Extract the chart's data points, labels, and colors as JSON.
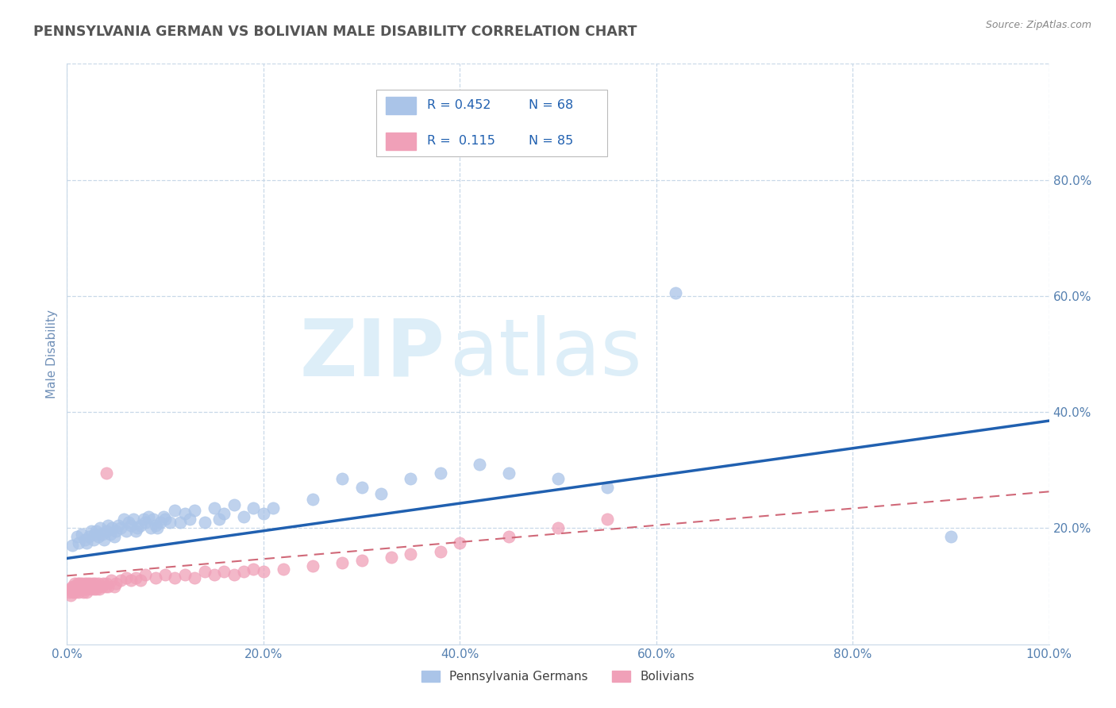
{
  "title": "PENNSYLVANIA GERMAN VS BOLIVIAN MALE DISABILITY CORRELATION CHART",
  "source_text": "Source: ZipAtlas.com",
  "ylabel": "Male Disability",
  "xlim": [
    0.0,
    1.0
  ],
  "ylim": [
    0.0,
    1.0
  ],
  "xtick_labels": [
    "0.0%",
    "20.0%",
    "40.0%",
    "60.0%",
    "80.0%",
    "100.0%"
  ],
  "xtick_vals": [
    0.0,
    0.2,
    0.4,
    0.6,
    0.8,
    1.0
  ],
  "ytick_labels": [
    "20.0%",
    "40.0%",
    "60.0%",
    "80.0%"
  ],
  "ytick_vals": [
    0.2,
    0.4,
    0.6,
    0.8
  ],
  "legend_r1": "R = 0.452",
  "legend_n1": "N = 68",
  "legend_r2": "R =  0.115",
  "legend_n2": "N = 85",
  "series1_color": "#aac4e8",
  "series2_color": "#f0a0b8",
  "trendline1_color": "#2060b0",
  "trendline2_color": "#d06878",
  "background_color": "#ffffff",
  "grid_color": "#c8d8e8",
  "watermark_color": "#ddeef8",
  "title_color": "#555555",
  "source_color": "#888888",
  "axis_label_color": "#7090b8",
  "tick_color": "#5580b0",
  "legend_text_color": "#2060b0",
  "bottom_legend_color": "#404040",
  "trendline1_start_y": 0.148,
  "trendline1_end_y": 0.385,
  "trendline2_start_y": 0.118,
  "trendline2_end_y": 0.263,
  "series1_x": [
    0.005,
    0.01,
    0.012,
    0.015,
    0.018,
    0.02,
    0.022,
    0.025,
    0.027,
    0.028,
    0.03,
    0.032,
    0.034,
    0.036,
    0.038,
    0.04,
    0.042,
    0.044,
    0.046,
    0.048,
    0.05,
    0.052,
    0.055,
    0.058,
    0.06,
    0.063,
    0.065,
    0.068,
    0.07,
    0.072,
    0.075,
    0.078,
    0.08,
    0.083,
    0.085,
    0.088,
    0.09,
    0.092,
    0.095,
    0.098,
    0.1,
    0.105,
    0.11,
    0.115,
    0.12,
    0.125,
    0.13,
    0.14,
    0.15,
    0.155,
    0.16,
    0.17,
    0.18,
    0.19,
    0.2,
    0.21,
    0.25,
    0.28,
    0.3,
    0.32,
    0.35,
    0.38,
    0.42,
    0.45,
    0.5,
    0.55,
    0.62,
    0.9
  ],
  "series1_y": [
    0.17,
    0.185,
    0.175,
    0.19,
    0.18,
    0.175,
    0.185,
    0.195,
    0.18,
    0.19,
    0.195,
    0.185,
    0.2,
    0.19,
    0.18,
    0.195,
    0.205,
    0.19,
    0.2,
    0.185,
    0.195,
    0.205,
    0.2,
    0.215,
    0.195,
    0.21,
    0.205,
    0.215,
    0.195,
    0.2,
    0.205,
    0.215,
    0.21,
    0.22,
    0.2,
    0.215,
    0.205,
    0.2,
    0.21,
    0.22,
    0.215,
    0.21,
    0.23,
    0.21,
    0.225,
    0.215,
    0.23,
    0.21,
    0.235,
    0.215,
    0.225,
    0.24,
    0.22,
    0.235,
    0.225,
    0.235,
    0.25,
    0.285,
    0.27,
    0.26,
    0.285,
    0.295,
    0.31,
    0.295,
    0.285,
    0.27,
    0.605,
    0.185
  ],
  "series2_x": [
    0.002,
    0.003,
    0.004,
    0.005,
    0.005,
    0.006,
    0.007,
    0.007,
    0.008,
    0.008,
    0.009,
    0.009,
    0.01,
    0.01,
    0.011,
    0.011,
    0.012,
    0.012,
    0.013,
    0.013,
    0.014,
    0.014,
    0.015,
    0.015,
    0.016,
    0.016,
    0.017,
    0.017,
    0.018,
    0.018,
    0.019,
    0.019,
    0.02,
    0.02,
    0.021,
    0.022,
    0.023,
    0.024,
    0.025,
    0.026,
    0.027,
    0.028,
    0.029,
    0.03,
    0.031,
    0.032,
    0.033,
    0.035,
    0.037,
    0.039,
    0.04,
    0.042,
    0.045,
    0.048,
    0.05,
    0.055,
    0.06,
    0.065,
    0.07,
    0.075,
    0.08,
    0.09,
    0.1,
    0.11,
    0.12,
    0.13,
    0.14,
    0.15,
    0.16,
    0.17,
    0.18,
    0.19,
    0.2,
    0.22,
    0.25,
    0.28,
    0.3,
    0.33,
    0.35,
    0.38,
    0.4,
    0.45,
    0.5,
    0.55,
    0.04
  ],
  "series2_y": [
    0.09,
    0.095,
    0.085,
    0.1,
    0.095,
    0.09,
    0.1,
    0.095,
    0.105,
    0.095,
    0.1,
    0.09,
    0.1,
    0.095,
    0.105,
    0.095,
    0.1,
    0.09,
    0.105,
    0.095,
    0.1,
    0.095,
    0.105,
    0.095,
    0.1,
    0.095,
    0.1,
    0.09,
    0.105,
    0.095,
    0.1,
    0.095,
    0.1,
    0.09,
    0.105,
    0.1,
    0.105,
    0.095,
    0.1,
    0.105,
    0.095,
    0.1,
    0.105,
    0.095,
    0.1,
    0.105,
    0.095,
    0.1,
    0.105,
    0.1,
    0.105,
    0.1,
    0.11,
    0.1,
    0.105,
    0.11,
    0.115,
    0.11,
    0.115,
    0.11,
    0.12,
    0.115,
    0.12,
    0.115,
    0.12,
    0.115,
    0.125,
    0.12,
    0.125,
    0.12,
    0.125,
    0.13,
    0.125,
    0.13,
    0.135,
    0.14,
    0.145,
    0.15,
    0.155,
    0.16,
    0.175,
    0.185,
    0.2,
    0.215,
    0.295
  ]
}
